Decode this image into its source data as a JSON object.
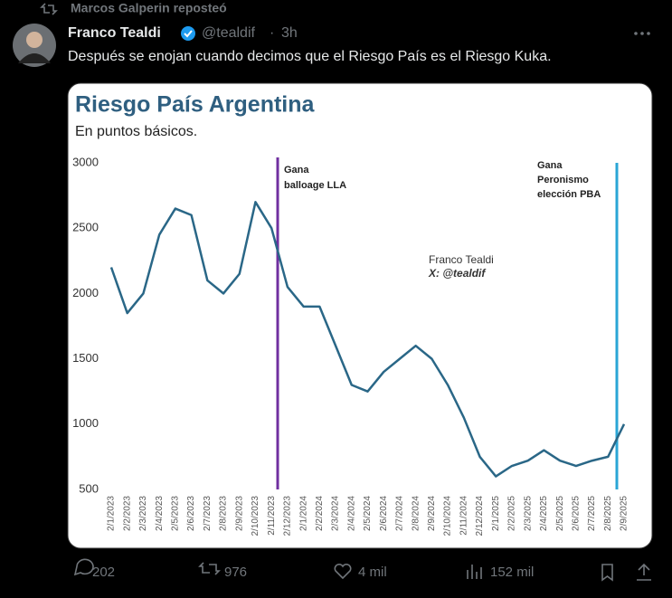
{
  "header": {
    "reposted_by": "Marcos Galperin reposteó"
  },
  "author": {
    "name": "Franco Tealdi",
    "handle": "@tealdif",
    "time": "3h"
  },
  "text": "Después se enojan cuando decimos que el Riesgo País es el Riesgo Kuka.",
  "chart": {
    "type": "line",
    "title": "Riesgo País Argentina",
    "subtitle": "En puntos básicos.",
    "categories": [
      "2/1/2023",
      "2/2/2023",
      "2/3/2023",
      "2/4/2023",
      "2/5/2023",
      "2/6/2023",
      "2/7/2023",
      "2/8/2023",
      "2/9/2023",
      "2/10/2023",
      "2/11/2023",
      "2/12/2023",
      "2/1/2024",
      "2/2/2024",
      "2/3/2024",
      "2/4/2024",
      "2/5/2024",
      "2/6/2024",
      "2/7/2024",
      "2/8/2024",
      "2/9/2024",
      "2/10/2024",
      "2/11/2024",
      "2/12/2024",
      "2/1/2025",
      "2/2/2025",
      "2/3/2025",
      "2/4/2025",
      "2/5/2025",
      "2/6/2025",
      "2/7/2025",
      "2/8/2025",
      "2/9/2025"
    ],
    "values": [
      2200,
      1850,
      2000,
      2450,
      2650,
      2600,
      2100,
      2000,
      2150,
      2700,
      2500,
      2050,
      1900,
      1900,
      1600,
      1300,
      1250,
      1400,
      1500,
      1600,
      1500,
      1300,
      1050,
      750,
      600,
      680,
      720,
      800,
      720,
      680,
      720,
      750,
      1000
    ],
    "color": "#2a6787",
    "ylim": [
      500,
      3000
    ],
    "yticks": [
      500,
      1000,
      1500,
      2000,
      2500,
      3000
    ],
    "annotations": [
      {
        "lines": [
          "Gana",
          "balloage LLA"
        ],
        "color": "#7030a0"
      },
      {
        "lines": [
          "Gana",
          "Peronismo",
          "elección PBA"
        ],
        "color": "#2aa6d6"
      }
    ],
    "watermark": [
      "Franco Tealdi",
      "X: @tealdif"
    ]
  },
  "stats": {
    "replies": "202",
    "reposts": "976",
    "likes": "4 mil",
    "views": "152 mil"
  }
}
